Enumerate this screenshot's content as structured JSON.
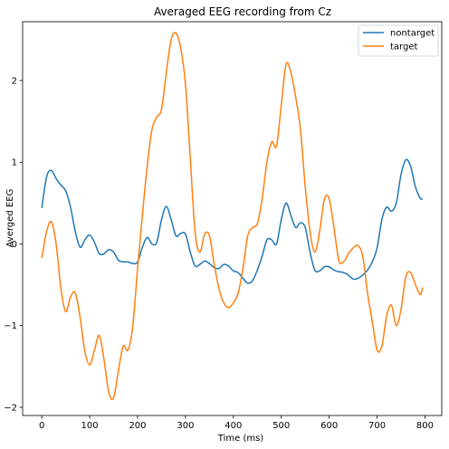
{
  "chart_data": {
    "type": "line",
    "title": "Averaged EEG recording from Cz",
    "xlabel": "Time (ms)",
    "ylabel": "Averged EEG",
    "xlim": [
      -40,
      835
    ],
    "ylim": [
      -2.1,
      2.72
    ],
    "xticks": [
      0,
      100,
      200,
      300,
      400,
      500,
      600,
      700,
      800
    ],
    "yticks": [
      -2,
      -1,
      0,
      1,
      2
    ],
    "grid": false,
    "legend_position": "top-right",
    "series": [
      {
        "name": "nontarget",
        "color": "#1f77b4",
        "x": [
          0,
          10,
          20,
          30,
          40,
          50,
          60,
          70,
          80,
          90,
          100,
          110,
          120,
          130,
          140,
          150,
          160,
          170,
          180,
          190,
          200,
          210,
          220,
          230,
          240,
          250,
          260,
          270,
          280,
          290,
          300,
          310,
          320,
          330,
          340,
          350,
          360,
          370,
          380,
          390,
          400,
          410,
          420,
          430,
          440,
          450,
          460,
          470,
          480,
          490,
          500,
          510,
          520,
          530,
          540,
          550,
          560,
          570,
          580,
          590,
          600,
          610,
          620,
          630,
          640,
          650,
          660,
          670,
          680,
          690,
          700,
          710,
          720,
          730,
          740,
          750,
          760,
          770,
          780,
          790,
          795
        ],
        "y": [
          0.44,
          0.82,
          0.9,
          0.8,
          0.72,
          0.65,
          0.45,
          0.15,
          -0.04,
          0.05,
          0.11,
          0.02,
          -0.12,
          -0.12,
          -0.07,
          -0.1,
          -0.2,
          -0.22,
          -0.22,
          -0.24,
          -0.22,
          -0.04,
          0.08,
          0.0,
          0.02,
          0.3,
          0.46,
          0.3,
          0.1,
          0.13,
          0.12,
          -0.1,
          -0.27,
          -0.25,
          -0.21,
          -0.24,
          -0.29,
          -0.3,
          -0.25,
          -0.27,
          -0.33,
          -0.35,
          -0.42,
          -0.48,
          -0.45,
          -0.32,
          -0.15,
          0.05,
          0.05,
          0.0,
          0.3,
          0.5,
          0.35,
          0.2,
          0.26,
          0.2,
          -0.1,
          -0.32,
          -0.33,
          -0.28,
          -0.28,
          -0.32,
          -0.34,
          -0.35,
          -0.38,
          -0.43,
          -0.42,
          -0.38,
          -0.32,
          -0.22,
          -0.05,
          0.3,
          0.45,
          0.4,
          0.5,
          0.85,
          1.03,
          0.95,
          0.7,
          0.56,
          0.55
        ]
      },
      {
        "name": "target",
        "color": "#ff7f0e",
        "x": [
          0,
          10,
          20,
          30,
          40,
          50,
          60,
          70,
          80,
          90,
          100,
          110,
          120,
          130,
          140,
          150,
          160,
          170,
          180,
          190,
          200,
          210,
          220,
          230,
          240,
          250,
          260,
          270,
          280,
          290,
          300,
          310,
          320,
          330,
          340,
          350,
          360,
          370,
          380,
          390,
          400,
          410,
          420,
          430,
          440,
          450,
          460,
          470,
          480,
          490,
          500,
          510,
          520,
          530,
          540,
          550,
          560,
          570,
          580,
          590,
          600,
          610,
          620,
          630,
          640,
          650,
          660,
          670,
          680,
          690,
          700,
          710,
          720,
          730,
          740,
          750,
          760,
          770,
          780,
          790,
          795
        ],
        "y": [
          -0.17,
          0.15,
          0.27,
          0.0,
          -0.55,
          -0.83,
          -0.65,
          -0.6,
          -0.9,
          -1.32,
          -1.48,
          -1.3,
          -1.12,
          -1.42,
          -1.82,
          -1.88,
          -1.55,
          -1.25,
          -1.3,
          -1.0,
          -0.3,
          0.35,
          0.95,
          1.4,
          1.55,
          1.65,
          2.1,
          2.5,
          2.58,
          2.4,
          1.95,
          1.05,
          0.15,
          -0.1,
          0.12,
          0.1,
          -0.25,
          -0.55,
          -0.72,
          -0.78,
          -0.72,
          -0.6,
          -0.3,
          0.1,
          0.2,
          0.25,
          0.55,
          1.0,
          1.25,
          1.2,
          1.7,
          2.2,
          2.1,
          1.8,
          1.4,
          0.7,
          0.15,
          -0.1,
          0.15,
          0.55,
          0.55,
          0.2,
          -0.2,
          -0.22,
          -0.12,
          -0.05,
          -0.02,
          -0.15,
          -0.6,
          -0.95,
          -1.3,
          -1.25,
          -0.88,
          -0.75,
          -1.0,
          -0.8,
          -0.4,
          -0.35,
          -0.5,
          -0.62,
          -0.53
        ]
      }
    ]
  }
}
